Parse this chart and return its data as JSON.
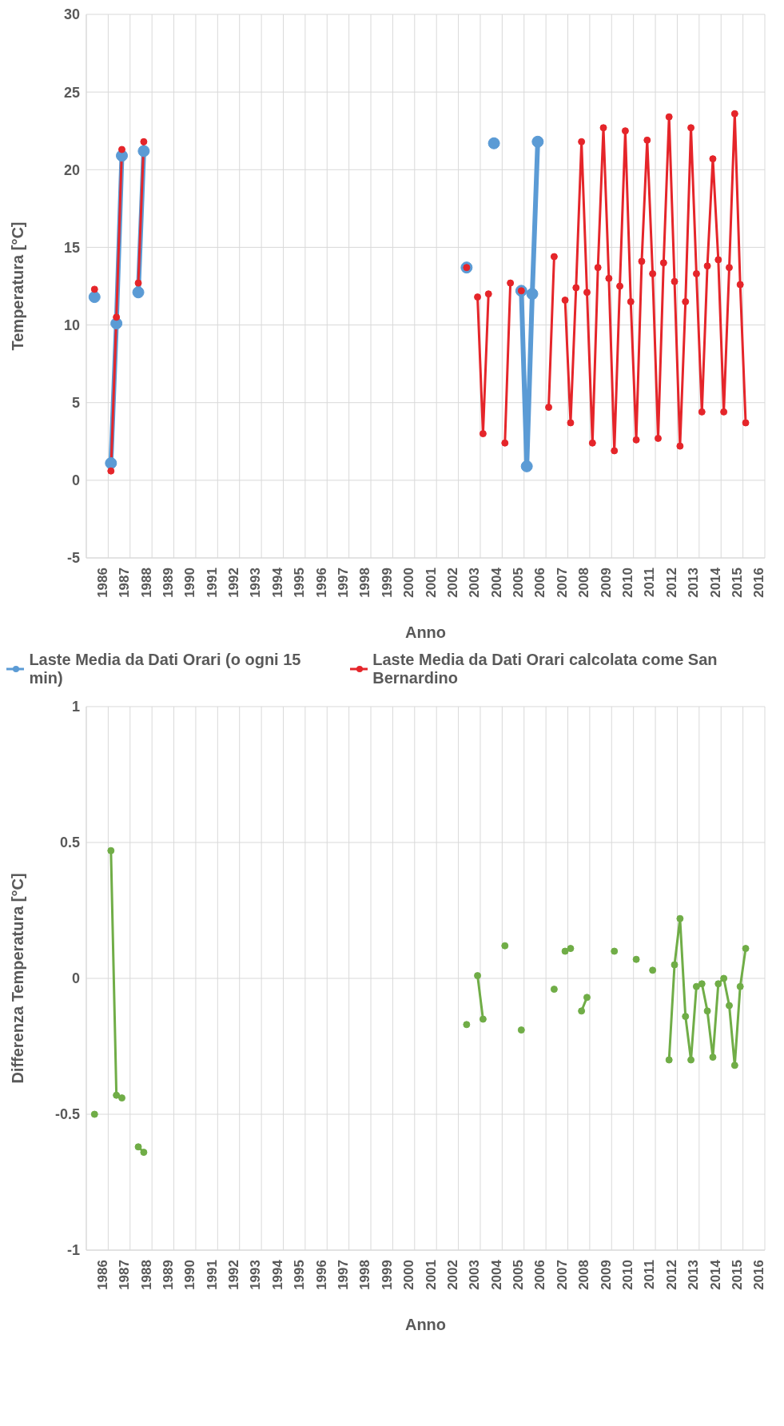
{
  "chart_data": [
    {
      "type": "line",
      "xlabel": "Anno",
      "ylabel": "Temperatura [°C]",
      "xlim": [
        1986,
        2017
      ],
      "xticks": [
        {
          "value": 1986,
          "label": null
        },
        {
          "value": 1986.5,
          "label": "1986"
        },
        {
          "value": 1987,
          "label": null
        },
        {
          "value": 1987.5,
          "label": "1987"
        },
        {
          "value": 1988,
          "label": null
        },
        {
          "value": 1988.5,
          "label": "1988"
        },
        {
          "value": 1989,
          "label": null
        },
        {
          "value": 1989.5,
          "label": "1989"
        },
        {
          "value": 1990,
          "label": null
        },
        {
          "value": 1990.5,
          "label": "1990"
        },
        {
          "value": 1991,
          "label": null
        },
        {
          "value": 1991.5,
          "label": "1991"
        },
        {
          "value": 1992,
          "label": null
        },
        {
          "value": 1992.5,
          "label": "1992"
        },
        {
          "value": 1993,
          "label": null
        },
        {
          "value": 1993.5,
          "label": "1993"
        },
        {
          "value": 1994,
          "label": null
        },
        {
          "value": 1994.5,
          "label": "1994"
        },
        {
          "value": 1995,
          "label": null
        },
        {
          "value": 1995.5,
          "label": "1995"
        },
        {
          "value": 1996,
          "label": null
        },
        {
          "value": 1996.5,
          "label": "1996"
        },
        {
          "value": 1997,
          "label": null
        },
        {
          "value": 1997.5,
          "label": "1997"
        },
        {
          "value": 1998,
          "label": null
        },
        {
          "value": 1998.5,
          "label": "1998"
        },
        {
          "value": 1999,
          "label": null
        },
        {
          "value": 1999.5,
          "label": "1999"
        },
        {
          "value": 2000,
          "label": null
        },
        {
          "value": 2000.5,
          "label": "2000"
        },
        {
          "value": 2001,
          "label": null
        },
        {
          "value": 2001.5,
          "label": "2001"
        },
        {
          "value": 2002,
          "label": null
        },
        {
          "value": 2002.5,
          "label": "2002"
        },
        {
          "value": 2003,
          "label": null
        },
        {
          "value": 2003.5,
          "label": "2003"
        },
        {
          "value": 2004,
          "label": null
        },
        {
          "value": 2004.5,
          "label": "2004"
        },
        {
          "value": 2005,
          "label": null
        },
        {
          "value": 2005.5,
          "label": "2005"
        },
        {
          "value": 2006,
          "label": null
        },
        {
          "value": 2006.5,
          "label": "2006"
        },
        {
          "value": 2007,
          "label": null
        },
        {
          "value": 2007.5,
          "label": "2007"
        },
        {
          "value": 2008,
          "label": null
        },
        {
          "value": 2008.5,
          "label": "2008"
        },
        {
          "value": 2009,
          "label": null
        },
        {
          "value": 2009.5,
          "label": "2009"
        },
        {
          "value": 2010,
          "label": null
        },
        {
          "value": 2010.5,
          "label": "2010"
        },
        {
          "value": 2011,
          "label": null
        },
        {
          "value": 2011.5,
          "label": "2011"
        },
        {
          "value": 2012,
          "label": null
        },
        {
          "value": 2012.5,
          "label": "2012"
        },
        {
          "value": 2013,
          "label": null
        },
        {
          "value": 2013.5,
          "label": "2013"
        },
        {
          "value": 2014,
          "label": null
        },
        {
          "value": 2014.5,
          "label": "2014"
        },
        {
          "value": 2015,
          "label": null
        },
        {
          "value": 2015.5,
          "label": "2015"
        },
        {
          "value": 2016,
          "label": null
        },
        {
          "value": 2016.5,
          "label": "2016"
        },
        {
          "value": 2017,
          "label": null
        }
      ],
      "ylim": [
        -5,
        30
      ],
      "yticks": [
        -5,
        0,
        5,
        10,
        15,
        20,
        25,
        30
      ],
      "grid": true,
      "legend": "bottom",
      "marker": "circle",
      "series": [
        {
          "name": "Laste Media da Dati Orari (o ogni 15 min)",
          "color": "#5b9bd5",
          "x": [
            1986.375,
            1986.625,
            1987.125,
            1987.375,
            1987.625,
            1987.875,
            1988.375,
            1988.625,
            1988.875,
            2003.375,
            2003.625,
            2004.625,
            2004.875,
            2005.875,
            2006.125,
            2006.375,
            2006.625
          ],
          "values": [
            11.8,
            null,
            1.1,
            10.1,
            20.9,
            null,
            12.1,
            21.2,
            null,
            13.7,
            null,
            21.7,
            null,
            12.2,
            0.9,
            12.0,
            21.8
          ]
        },
        {
          "name": "Laste Media da Dati Orari calcolata come San Bernardino",
          "color": "#e5252a",
          "x": [
            1986.375,
            1986.625,
            1987.125,
            1987.375,
            1987.625,
            1987.875,
            1988.375,
            1988.625,
            1988.875,
            2003.375,
            2003.625,
            2003.875,
            2004.125,
            2004.375,
            2004.625,
            2005.125,
            2005.375,
            2005.625,
            2005.875,
            2006.125,
            2007.125,
            2007.375,
            2007.625,
            2007.875,
            2008.125,
            2008.375,
            2008.625,
            2008.875,
            2009.125,
            2009.375,
            2009.625,
            2009.875,
            2010.125,
            2010.375,
            2010.625,
            2010.875,
            2011.125,
            2011.375,
            2011.625,
            2011.875,
            2012.125,
            2012.375,
            2012.625,
            2012.875,
            2013.125,
            2013.375,
            2013.625,
            2013.875,
            2014.125,
            2014.375,
            2014.625,
            2014.875,
            2015.125,
            2015.375,
            2015.625,
            2015.875,
            2016.125
          ],
          "values": [
            12.3,
            null,
            0.6,
            10.5,
            21.3,
            null,
            12.7,
            21.8,
            null,
            13.7,
            null,
            11.8,
            3.0,
            12.0,
            null,
            2.4,
            12.7,
            null,
            12.2,
            null,
            4.7,
            14.4,
            null,
            11.6,
            3.7,
            12.4,
            21.8,
            12.1,
            2.4,
            13.7,
            22.7,
            13.0,
            1.9,
            12.5,
            22.5,
            11.5,
            2.6,
            14.1,
            21.9,
            13.3,
            2.7,
            14.0,
            23.4,
            12.8,
            2.2,
            11.5,
            22.7,
            13.3,
            4.4,
            13.8,
            20.7,
            14.2,
            4.4,
            13.7,
            23.6,
            12.6,
            3.7
          ]
        }
      ]
    },
    {
      "type": "line",
      "xlabel": "Anno",
      "ylabel": "Differenza Temperatura [°C]",
      "xlim": [
        1986,
        2017
      ],
      "xticks": [
        {
          "value": 1986,
          "label": null
        },
        {
          "value": 1986.5,
          "label": "1986"
        },
        {
          "value": 1987,
          "label": null
        },
        {
          "value": 1987.5,
          "label": "1987"
        },
        {
          "value": 1988,
          "label": null
        },
        {
          "value": 1988.5,
          "label": "1988"
        },
        {
          "value": 1989,
          "label": null
        },
        {
          "value": 1989.5,
          "label": "1989"
        },
        {
          "value": 1990,
          "label": null
        },
        {
          "value": 1990.5,
          "label": "1990"
        },
        {
          "value": 1991,
          "label": null
        },
        {
          "value": 1991.5,
          "label": "1991"
        },
        {
          "value": 1992,
          "label": null
        },
        {
          "value": 1992.5,
          "label": "1992"
        },
        {
          "value": 1993,
          "label": null
        },
        {
          "value": 1993.5,
          "label": "1993"
        },
        {
          "value": 1994,
          "label": null
        },
        {
          "value": 1994.5,
          "label": "1994"
        },
        {
          "value": 1995,
          "label": null
        },
        {
          "value": 1995.5,
          "label": "1995"
        },
        {
          "value": 1996,
          "label": null
        },
        {
          "value": 1996.5,
          "label": "1996"
        },
        {
          "value": 1997,
          "label": null
        },
        {
          "value": 1997.5,
          "label": "1997"
        },
        {
          "value": 1998,
          "label": null
        },
        {
          "value": 1998.5,
          "label": "1998"
        },
        {
          "value": 1999,
          "label": null
        },
        {
          "value": 1999.5,
          "label": "1999"
        },
        {
          "value": 2000,
          "label": null
        },
        {
          "value": 2000.5,
          "label": "2000"
        },
        {
          "value": 2001,
          "label": null
        },
        {
          "value": 2001.5,
          "label": "2001"
        },
        {
          "value": 2002,
          "label": null
        },
        {
          "value": 2002.5,
          "label": "2002"
        },
        {
          "value": 2003,
          "label": null
        },
        {
          "value": 2003.5,
          "label": "2003"
        },
        {
          "value": 2004,
          "label": null
        },
        {
          "value": 2004.5,
          "label": "2004"
        },
        {
          "value": 2005,
          "label": null
        },
        {
          "value": 2005.5,
          "label": "2005"
        },
        {
          "value": 2006,
          "label": null
        },
        {
          "value": 2006.5,
          "label": "2006"
        },
        {
          "value": 2007,
          "label": null
        },
        {
          "value": 2007.5,
          "label": "2007"
        },
        {
          "value": 2008,
          "label": null
        },
        {
          "value": 2008.5,
          "label": "2008"
        },
        {
          "value": 2009,
          "label": null
        },
        {
          "value": 2009.5,
          "label": "2009"
        },
        {
          "value": 2010,
          "label": null
        },
        {
          "value": 2010.5,
          "label": "2010"
        },
        {
          "value": 2011,
          "label": null
        },
        {
          "value": 2011.5,
          "label": "2011"
        },
        {
          "value": 2012,
          "label": null
        },
        {
          "value": 2012.5,
          "label": "2012"
        },
        {
          "value": 2013,
          "label": null
        },
        {
          "value": 2013.5,
          "label": "2013"
        },
        {
          "value": 2014,
          "label": null
        },
        {
          "value": 2014.5,
          "label": "2014"
        },
        {
          "value": 2015,
          "label": null
        },
        {
          "value": 2015.5,
          "label": "2015"
        },
        {
          "value": 2016,
          "label": null
        },
        {
          "value": 2016.5,
          "label": "2016"
        },
        {
          "value": 2017,
          "label": null
        }
      ],
      "ylim": [
        -1,
        1
      ],
      "yticks": [
        -1,
        -0.5,
        0,
        0.5,
        1
      ],
      "grid": true,
      "marker": "circle",
      "series": [
        {
          "color": "#70ad47",
          "x": [
            1986.375,
            1986.625,
            1987.125,
            1987.375,
            1987.625,
            1987.875,
            1988.375,
            1988.625,
            1988.875,
            2003.375,
            2003.625,
            2003.875,
            2004.125,
            2004.375,
            2005.125,
            2005.375,
            2005.875,
            2006.125,
            2007.375,
            2007.625,
            2007.875,
            2008.125,
            2008.375,
            2008.625,
            2008.875,
            2009.125,
            2010.125,
            2010.375,
            2011.125,
            2011.375,
            2011.875,
            2012.125,
            2012.625,
            2012.875,
            2013.125,
            2013.375,
            2013.625,
            2013.875,
            2014.125,
            2014.375,
            2014.625,
            2014.875,
            2015.125,
            2015.375,
            2015.625,
            2015.875,
            2016.125
          ],
          "values": [
            -0.5,
            null,
            0.47,
            -0.43,
            -0.44,
            null,
            -0.62,
            -0.64,
            null,
            -0.17,
            null,
            0.01,
            -0.15,
            null,
            0.12,
            null,
            -0.19,
            null,
            -0.04,
            null,
            0.1,
            0.11,
            null,
            -0.12,
            -0.07,
            null,
            0.1,
            null,
            0.07,
            null,
            0.03,
            null,
            -0.3,
            0.05,
            0.22,
            -0.14,
            -0.3,
            -0.03,
            -0.02,
            -0.12,
            -0.29,
            -0.02,
            0.0,
            -0.1,
            -0.32,
            -0.03,
            0.11
          ]
        }
      ]
    }
  ]
}
